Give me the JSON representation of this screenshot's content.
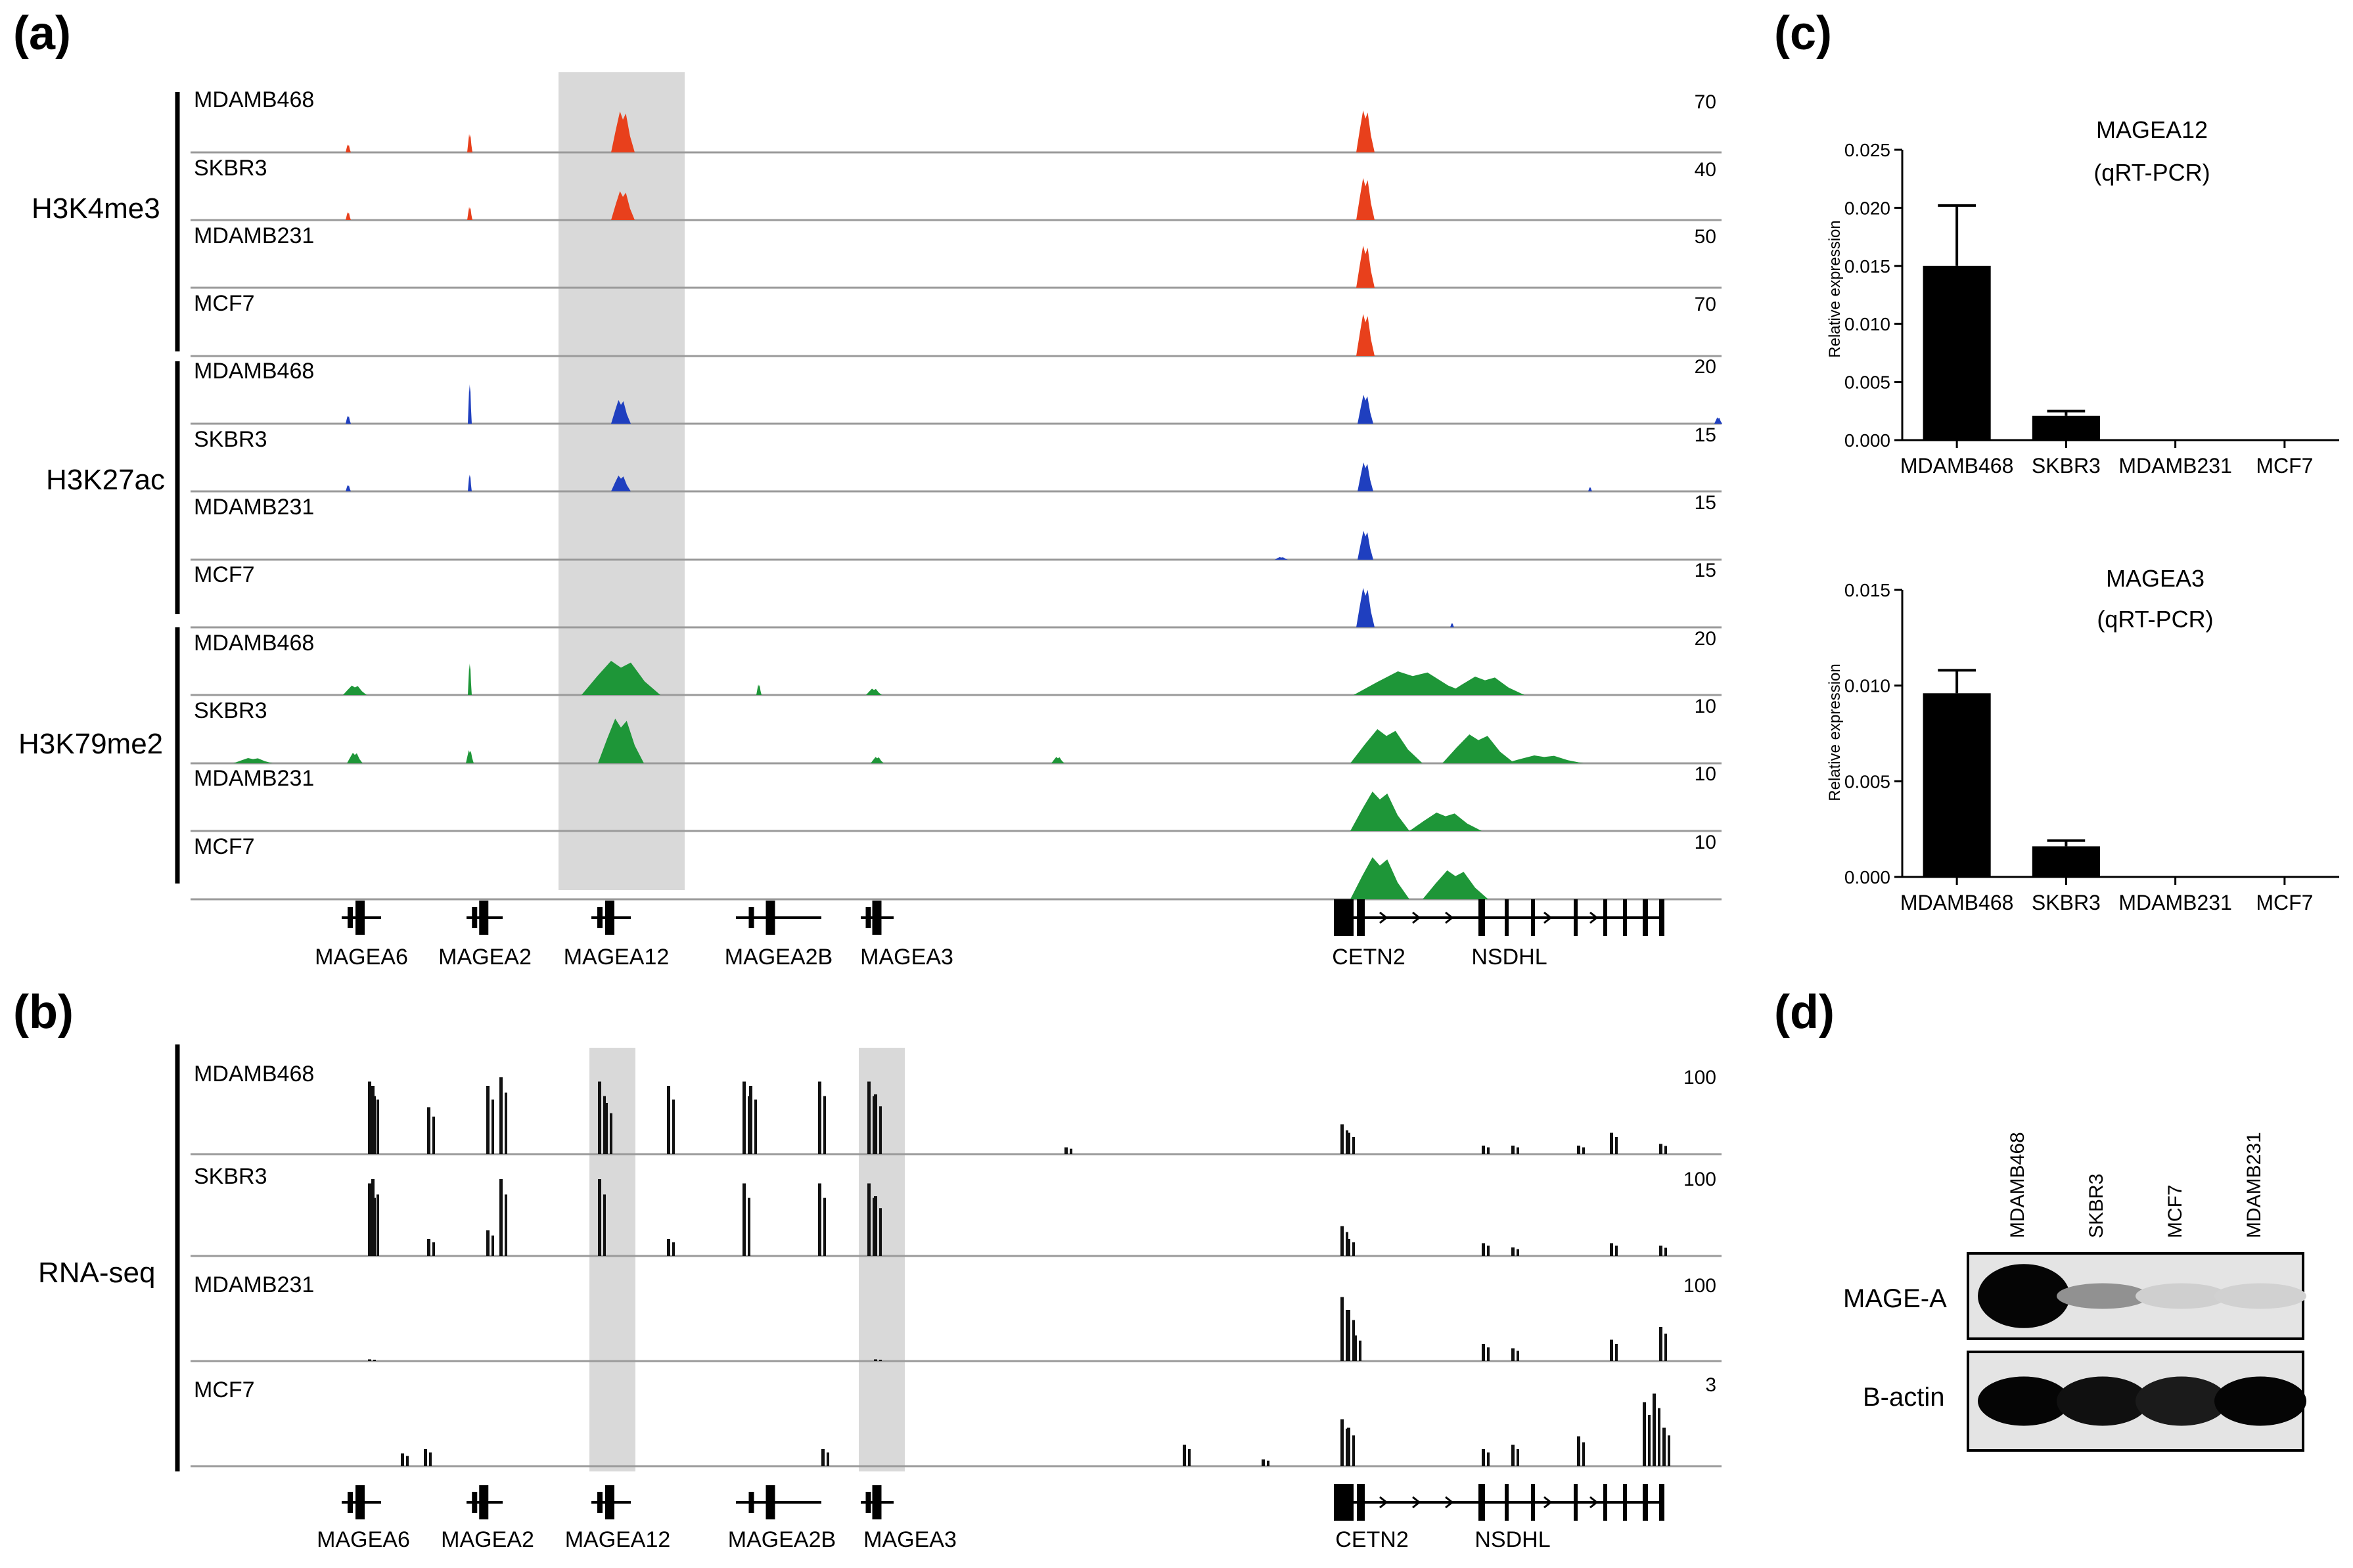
{
  "panels": {
    "a": "(a)",
    "b": "(b)",
    "c": "(c)",
    "d": "(d)"
  },
  "colors": {
    "H3K4me3": "#e8401c",
    "H3K27ac": "#1f3fbf",
    "H3K79me2": "#1e9638",
    "RNA": "#111111",
    "highlight": "#d9d9d9",
    "bar": "#000000"
  },
  "genes": [
    {
      "name": "MAGEA6"
    },
    {
      "name": "MAGEA2"
    },
    {
      "name": "MAGEA12"
    },
    {
      "name": "MAGEA2B"
    },
    {
      "name": "MAGEA3"
    },
    {
      "name": "CETN2"
    },
    {
      "name": "NSDHL"
    }
  ],
  "chipseq": {
    "groups": [
      {
        "mark": "H3K4me3",
        "color_key": "H3K4me3",
        "tracks": [
          {
            "cell": "MDAMB468",
            "scale": "70"
          },
          {
            "cell": "SKBR3",
            "scale": "40"
          },
          {
            "cell": "MDAMB231",
            "scale": "50"
          },
          {
            "cell": "MCF7",
            "scale": "70"
          }
        ]
      },
      {
        "mark": "H3K27ac",
        "color_key": "H3K27ac",
        "tracks": [
          {
            "cell": "MDAMB468",
            "scale": "20"
          },
          {
            "cell": "SKBR3",
            "scale": "15"
          },
          {
            "cell": "MDAMB231",
            "scale": "15"
          },
          {
            "cell": "MCF7",
            "scale": "15"
          }
        ]
      },
      {
        "mark": "H3K79me2",
        "color_key": "H3K79me2",
        "tracks": [
          {
            "cell": "MDAMB468",
            "scale": "20"
          },
          {
            "cell": "SKBR3",
            "scale": "10"
          },
          {
            "cell": "MDAMB231",
            "scale": "10"
          },
          {
            "cell": "MCF7",
            "scale": "10"
          }
        ]
      }
    ]
  },
  "rnaseq": {
    "label": "RNA-seq",
    "tracks": [
      {
        "cell": "MDAMB468",
        "scale": "100"
      },
      {
        "cell": "SKBR3",
        "scale": "100"
      },
      {
        "cell": "MDAMB231",
        "scale": "100"
      },
      {
        "cell": "MCF7",
        "scale": "3"
      }
    ]
  },
  "chart_data": [
    {
      "type": "bar",
      "title": "MAGEA12",
      "subtitle": "(qRT-PCR)",
      "ylabel": "Relative expression",
      "categories": [
        "MDAMB468",
        "SKBR3",
        "MDAMB231",
        "MCF7"
      ],
      "values": [
        0.015,
        0.0021,
        0.0,
        0.0
      ],
      "errors": [
        0.0052,
        0.0004,
        0.0,
        0.0
      ],
      "ylim": [
        0,
        0.025
      ],
      "yticks": [
        "0.000",
        "0.005",
        "0.010",
        "0.015",
        "0.020",
        "0.025"
      ]
    },
    {
      "type": "bar",
      "title": "MAGEA3",
      "subtitle": "(qRT-PCR)",
      "ylabel": "Relative expression",
      "categories": [
        "MDAMB468",
        "SKBR3",
        "MDAMB231",
        "MCF7"
      ],
      "values": [
        0.0096,
        0.0016,
        0.0,
        0.0
      ],
      "errors": [
        0.0012,
        0.0003,
        0.0,
        0.0
      ],
      "ylim": [
        0,
        0.015
      ],
      "yticks": [
        "0.000",
        "0.005",
        "0.010",
        "0.015"
      ]
    }
  ],
  "western": {
    "lanes": [
      "MDAMB468",
      "SKBR3",
      "MCF7",
      "MDAMB231"
    ],
    "rows": [
      {
        "label": "MAGE-A",
        "intensity": [
          1.0,
          0.35,
          0.06,
          0.05
        ]
      },
      {
        "label": "B-actin",
        "intensity": [
          1.0,
          0.95,
          0.9,
          1.0
        ]
      }
    ]
  }
}
